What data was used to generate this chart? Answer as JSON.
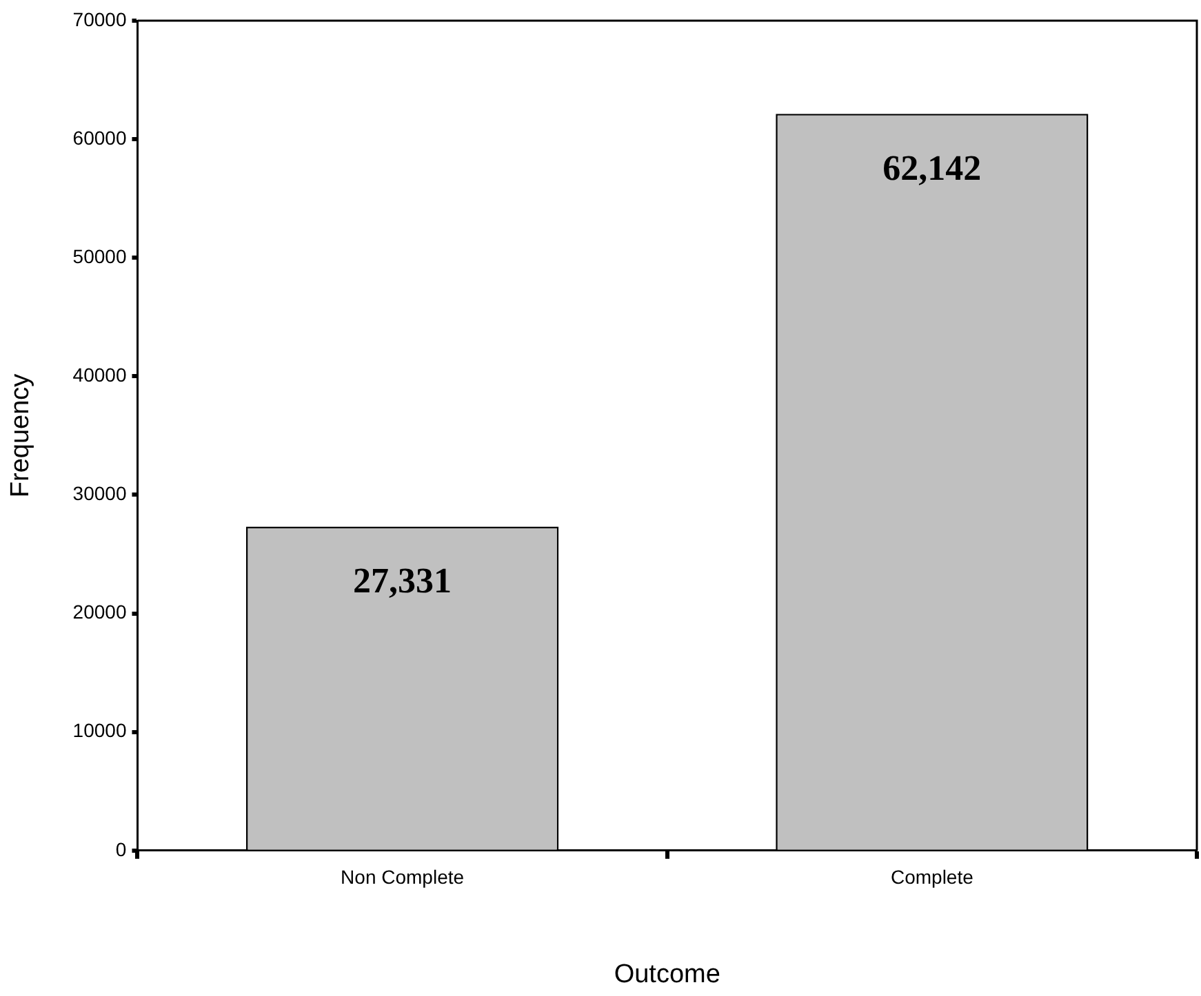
{
  "chart_data": {
    "type": "bar",
    "xlabel": "Outcome",
    "ylabel": "Frequency",
    "categories": [
      "Non Complete",
      "Complete"
    ],
    "values": [
      27331,
      62142
    ],
    "value_labels": [
      "27,331",
      "62,142"
    ],
    "color": "#c0c0c0",
    "ylim": [
      0,
      70000
    ],
    "yticks": [
      0,
      10000,
      20000,
      30000,
      40000,
      50000,
      60000,
      70000
    ],
    "grid": false,
    "legend": false
  }
}
